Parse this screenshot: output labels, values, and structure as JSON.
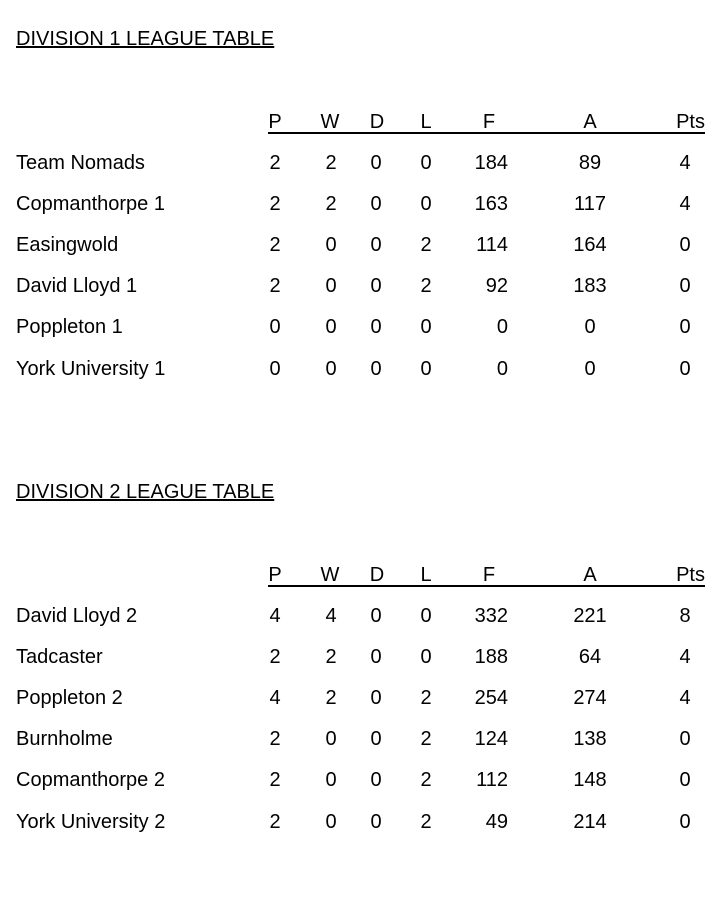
{
  "columns": [
    "P",
    "W",
    "D",
    "L",
    "F",
    "A",
    "Pts"
  ],
  "divisions": [
    {
      "title": "DIVISION 1 LEAGUE TABLE",
      "rows": [
        {
          "team": "Team Nomads",
          "P": "2",
          "W": "2",
          "D": "0",
          "L": "0",
          "F": "184",
          "A": "89",
          "Pts": "4"
        },
        {
          "team": "Copmanthorpe 1",
          "P": "2",
          "W": "2",
          "D": "0",
          "L": "0",
          "F": "163",
          "A": "117",
          "Pts": "4"
        },
        {
          "team": "Easingwold",
          "P": "2",
          "W": "0",
          "D": "0",
          "L": "2",
          "F": "114",
          "A": "164",
          "Pts": "0"
        },
        {
          "team": "David Lloyd 1",
          "P": "2",
          "W": "0",
          "D": "0",
          "L": "2",
          "F": "92",
          "A": "183",
          "Pts": "0"
        },
        {
          "team": "Poppleton 1",
          "P": "0",
          "W": "0",
          "D": "0",
          "L": "0",
          "F": "0",
          "A": "0",
          "Pts": "0"
        },
        {
          "team": "York University 1",
          "P": "0",
          "W": "0",
          "D": "0",
          "L": "0",
          "F": "0",
          "A": "0",
          "Pts": "0"
        }
      ]
    },
    {
      "title": "DIVISION 2 LEAGUE TABLE",
      "rows": [
        {
          "team": "David Lloyd 2",
          "P": "4",
          "W": "4",
          "D": "0",
          "L": "0",
          "F": "332",
          "A": "221",
          "Pts": "8"
        },
        {
          "team": "Tadcaster",
          "P": "2",
          "W": "2",
          "D": "0",
          "L": "0",
          "F": "188",
          "A": "64",
          "Pts": "4"
        },
        {
          "team": "Poppleton 2",
          "P": "4",
          "W": "2",
          "D": "0",
          "L": "2",
          "F": "254",
          "A": "274",
          "Pts": "4"
        },
        {
          "team": "Burnholme",
          "P": "2",
          "W": "0",
          "D": "0",
          "L": "2",
          "F": "124",
          "A": "138",
          "Pts": "0"
        },
        {
          "team": "Copmanthorpe 2",
          "P": "2",
          "W": "0",
          "D": "0",
          "L": "2",
          "F": "112",
          "A": "148",
          "Pts": "0"
        },
        {
          "team": "York University 2",
          "P": "2",
          "W": "0",
          "D": "0",
          "L": "2",
          "F": "49",
          "A": "214",
          "Pts": "0"
        }
      ]
    }
  ]
}
